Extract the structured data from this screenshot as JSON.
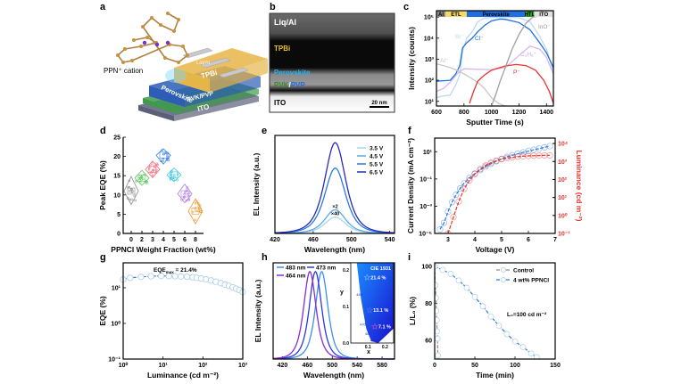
{
  "panel_labels": [
    "a",
    "b",
    "c",
    "d",
    "e",
    "f",
    "g",
    "h",
    "i"
  ],
  "panel_a": {
    "cation_label": "PPN⁺ cation",
    "layers": [
      "ITO",
      "PVK/PVP",
      "Perovskite",
      "TPBi",
      "Liq/Al"
    ],
    "colors": {
      "ITO": "#5b5f78",
      "PVK/PVP": "#3f9a4c",
      "Perovskite": "#2d5db6",
      "TPBi": "#e6b548",
      "Liq/Al": "#c9c9c9"
    }
  },
  "panel_b": {
    "layers": [
      {
        "label": "Liq/Al",
        "color": "#ffffff"
      },
      {
        "label": "TPBi",
        "color": "#f0c020"
      },
      {
        "label": "Perovskite",
        "color": "#28b4f0"
      },
      {
        "label": "ITO",
        "color": "#000000"
      }
    ],
    "pvk_label": "PVK",
    "pvp_label": "PVP",
    "slash": "/",
    "pvk_color": "#3a8a2a",
    "pvp_color": "#1e6ee0",
    "scale_bar": "20 nm"
  },
  "chart_data": [
    {
      "id": "c",
      "type": "line",
      "xlabel": "Sputter Time (s)",
      "ylabel": "Intensity (counts)",
      "xlim": [
        600,
        1450
      ],
      "ylim": [
        6,
        200000
      ],
      "yscale": "log",
      "xticks": [
        600,
        800,
        1000,
        1200,
        1400
      ],
      "xtick_labels": [
        "600",
        "800",
        "1000",
        "1200",
        "1400"
      ],
      "yticks": [
        10,
        100,
        1000,
        10000,
        100000
      ],
      "ytick_labels": [
        "10¹",
        "10²",
        "10³",
        "10⁴",
        "10⁵"
      ],
      "regions": [
        {
          "label": "Al",
          "from": 600,
          "to": 665,
          "color": "#8c8c8c"
        },
        {
          "label": "ETL",
          "from": 665,
          "to": 820,
          "color": "#f5d96a"
        },
        {
          "label": "Perovskite",
          "from": 820,
          "to": 1245,
          "color": "#1f6fe0"
        },
        {
          "label": "HTL",
          "from": 1245,
          "to": 1310,
          "color": "#2aa02a"
        },
        {
          "label": "ITO",
          "from": 1310,
          "to": 1450,
          "color": "#e0e0e0"
        }
      ],
      "series": [
        {
          "name": "Br⁻",
          "color": "#bcd9f2",
          "x": [
            600,
            650,
            700,
            740,
            770,
            790,
            820,
            860,
            900,
            950,
            1000,
            1100,
            1200,
            1280,
            1350,
            1400,
            1450
          ],
          "y": [
            15,
            18,
            20,
            60,
            200,
            2500,
            10000,
            20000,
            60000,
            90000,
            95000,
            95000,
            93000,
            60000,
            12000,
            3000,
            250
          ]
        },
        {
          "name": "Cl⁻",
          "color": "#1f6fe0",
          "x": [
            600,
            650,
            700,
            740,
            770,
            790,
            820,
            860,
            900,
            950,
            1000,
            1060,
            1100,
            1200,
            1280,
            1350,
            1400,
            1450
          ],
          "y": [
            90,
            95,
            100,
            200,
            500,
            3500,
            6000,
            10000,
            20000,
            40000,
            65000,
            80000,
            78000,
            55000,
            25000,
            6000,
            2000,
            400
          ]
        },
        {
          "name": "Al⁻",
          "color": "#c8c8c8",
          "x": [
            600,
            650,
            700,
            750,
            800,
            850,
            900,
            950,
            1000,
            1050,
            1100
          ],
          "y": [
            600,
            500,
            400,
            300,
            200,
            130,
            80,
            40,
            15,
            8,
            6
          ]
        },
        {
          "name": "C₃H₆⁺",
          "color": "#d5b8ee",
          "x": [
            600,
            650,
            700,
            750,
            800,
            900,
            1000,
            1100,
            1200,
            1280,
            1350,
            1400,
            1450
          ],
          "y": [
            30,
            40,
            80,
            200,
            350,
            330,
            320,
            400,
            1500,
            4200,
            3000,
            1200,
            200
          ]
        },
        {
          "name": "P⁻",
          "color": "#e8332c",
          "x": [
            840,
            870,
            900,
            950,
            1000,
            1100,
            1180,
            1250,
            1320,
            1380,
            1420,
            1450
          ],
          "y": [
            8,
            30,
            90,
            180,
            300,
            480,
            560,
            500,
            300,
            100,
            30,
            8
          ]
        },
        {
          "name": "InO⁻",
          "color": "#a0a0a0",
          "x": [
            1000,
            1030,
            1060,
            1100,
            1150,
            1200,
            1250,
            1300,
            1350,
            1450
          ],
          "y": [
            6,
            20,
            80,
            400,
            3000,
            15000,
            50000,
            100000,
            110000,
            110000
          ]
        }
      ],
      "labels": [
        "Br⁻",
        "Cl⁻",
        "Al⁻",
        "C₃H₆⁺",
        "P⁻",
        "InO⁻"
      ]
    },
    {
      "id": "d",
      "type": "violin",
      "xlabel": "PPNCl Weight Fraction (wt%)",
      "ylabel": "Peak EQE (%)",
      "ylim": [
        0,
        25
      ],
      "yticks": [
        0,
        5,
        10,
        15,
        20,
        25
      ],
      "ytick_labels": [
        "0",
        "5",
        "10",
        "15",
        "20",
        "25"
      ],
      "categories": [
        "0",
        "2",
        "3",
        "4",
        "5",
        "6",
        "8"
      ],
      "means": [
        11.0,
        14.4,
        16.6,
        20.3,
        15.2,
        10.3,
        5.8
      ],
      "ranges": [
        [
          7.5,
          14.8
        ],
        [
          12.5,
          16.4
        ],
        [
          14.5,
          18.8
        ],
        [
          18.0,
          22.0
        ],
        [
          13.5,
          17.0
        ],
        [
          8.0,
          12.8
        ],
        [
          2.5,
          9.0
        ]
      ],
      "colors": [
        "#8c8c8c",
        "#5fc85f",
        "#f06a7a",
        "#3a86e8",
        "#3ec8e0",
        "#b07ae0",
        "#f0962a"
      ]
    },
    {
      "id": "e",
      "type": "line",
      "xlabel": "Wavelength (nm)",
      "ylabel": "EL Intensity (a.u.)",
      "xlim": [
        420,
        545
      ],
      "ylim": [
        0,
        1.08
      ],
      "xticks": [
        420,
        460,
        500,
        540
      ],
      "xtick_labels": [
        "420",
        "460",
        "500",
        "540"
      ],
      "peak_nm": 483,
      "fwhm_nm": 24,
      "series": [
        {
          "name": "3.5 V",
          "color": "#a8d8f0",
          "relative_intensity": 0.18,
          "multiplier": "×40"
        },
        {
          "name": "4.5 V",
          "color": "#5aa8e8",
          "relative_intensity": 0.26,
          "multiplier": "×2"
        },
        {
          "name": "5.5 V",
          "color": "#2a78e0",
          "relative_intensity": 0.72
        },
        {
          "name": "6.5 V",
          "color": "#2a2ab8",
          "relative_intensity": 1.0
        }
      ]
    },
    {
      "id": "f",
      "type": "line",
      "xlabel": "Voltage (V)",
      "ylabel": "Current Density (mA cm⁻²)",
      "y2label": "Luminance (cd m⁻²)",
      "xlim": [
        2.5,
        7
      ],
      "xticks": [
        3,
        4,
        5,
        6,
        7
      ],
      "xtick_labels": [
        "3",
        "4",
        "5",
        "6",
        "7"
      ],
      "ylim": [
        1e-05,
        100
      ],
      "yscale": "log",
      "yticks": [
        1e-05,
        0.001,
        0.1,
        10
      ],
      "ytick_labels": [
        "10⁻⁵",
        "10⁻³",
        "10⁻¹",
        "10¹"
      ],
      "y2lim": [
        0.1,
        20000
      ],
      "y2ticks": [
        0.1,
        1,
        10,
        100,
        1000,
        10000
      ],
      "y2tick_labels": [
        "10⁻¹",
        "10⁰",
        "10¹",
        "10²",
        "10³",
        "10⁴"
      ],
      "y2color": "#e8332c",
      "series": [
        {
          "name": "Current Density",
          "axis": "left",
          "color": "#2a78e0",
          "x": [
            2.7,
            2.85,
            3.0,
            3.15,
            3.3,
            3.45,
            3.6,
            3.8,
            4.0,
            4.2,
            4.4,
            4.6,
            4.8,
            5.0,
            5.2,
            5.4,
            5.6,
            5.8,
            6.0,
            6.2,
            6.4,
            6.6,
            6.8
          ],
          "y": [
            2e-05,
            6e-05,
            0.0004,
            0.002,
            0.007,
            0.02,
            0.05,
            0.12,
            0.25,
            0.45,
            0.8,
            1.3,
            2.0,
            3.0,
            4.2,
            5.5,
            7.0,
            9.0,
            11,
            14,
            17,
            21,
            26
          ]
        },
        {
          "name": "Luminance",
          "axis": "right",
          "color": "#e8332c",
          "x": [
            3.0,
            3.2,
            3.4,
            3.6,
            3.8,
            4.0,
            4.2,
            4.4,
            4.6,
            4.8,
            5.0,
            5.2,
            5.4,
            5.6,
            5.8,
            6.0,
            6.2,
            6.4,
            6.6,
            6.8
          ],
          "y": [
            0.1,
            0.8,
            6,
            30,
            90,
            200,
            380,
            600,
            850,
            1100,
            1350,
            1550,
            1700,
            1850,
            1950,
            2050,
            2100,
            2150,
            2200,
            2200
          ]
        }
      ]
    },
    {
      "id": "g",
      "type": "line",
      "xlabel": "Luminance (cd m⁻²)",
      "ylabel": "EQE (%)",
      "xscale": "log",
      "xlim": [
        1,
        1000
      ],
      "xticks": [
        1,
        10,
        100,
        1000
      ],
      "xtick_labels": [
        "10⁰",
        "10¹",
        "10²",
        "10³"
      ],
      "yscale": "log",
      "ylim": [
        0.1,
        50
      ],
      "yticks": [
        0.1,
        1,
        10
      ],
      "ytick_labels": [
        "10⁻¹",
        "10⁰",
        "10¹"
      ],
      "annotation": "EQEmax = 21.4%",
      "annotation_main": "EQE",
      "annotation_sub": "max",
      "annotation_value": " = 21.4%",
      "series": [
        {
          "color": "#2a78e0",
          "x": [
            1,
            1.5,
            2.8,
            5,
            9,
            14,
            20,
            28,
            40,
            55,
            70,
            90,
            120,
            160,
            210,
            280,
            360,
            450,
            560,
            680,
            820,
            1000
          ],
          "y": [
            17,
            19,
            20.2,
            21,
            21.4,
            21.3,
            21.1,
            20.8,
            20.3,
            19.7,
            19,
            18.2,
            17.2,
            16,
            14.8,
            13.5,
            12.3,
            11.3,
            10.3,
            9.4,
            8.6,
            7.6
          ]
        }
      ]
    },
    {
      "id": "h",
      "type": "line",
      "xlabel": "Wavelength (nm)",
      "ylabel": "EL Intensity (a.u.)",
      "xlim": [
        405,
        600
      ],
      "ylim": [
        0,
        1.1
      ],
      "xticks": [
        420,
        460,
        500,
        540,
        580
      ],
      "xtick_labels": [
        "420",
        "460",
        "500",
        "540",
        "580"
      ],
      "fwhm_nm": 22,
      "series": [
        {
          "name": "483 nm",
          "color": "#3a90f0",
          "peak_nm": 483
        },
        {
          "name": "473 nm",
          "color": "#2a3ad8",
          "peak_nm": 473
        },
        {
          "name": "464 nm",
          "color": "#8a2ad8",
          "peak_nm": 464
        }
      ],
      "inset": {
        "title": "CIE 1931",
        "xlabel": "x",
        "ylabel": "y",
        "xlim": [
          0,
          0.25
        ],
        "ylim": [
          0,
          0.22
        ],
        "xticks": [
          0.1,
          0.2
        ],
        "xtick_labels": [
          "0.1",
          "0.2"
        ],
        "yticks": [
          0,
          0.1,
          0.2
        ],
        "ytick_labels": [
          "0.0",
          "0.1",
          "0.2"
        ],
        "locus_labels": [
          {
            "label": "480",
            "x": 0.05,
            "y": 0.13
          },
          {
            "label": "470",
            "x": 0.07,
            "y": 0.048
          },
          {
            "label": "460",
            "x": 0.1,
            "y": 0.022
          },
          {
            "label": "440",
            "x": 0.13,
            "y": 0.004
          }
        ],
        "points": [
          {
            "label": "21.4 %",
            "x": 0.095,
            "y": 0.18,
            "color": "#6ab0ff"
          },
          {
            "label": "13.1 %",
            "x": 0.11,
            "y": 0.09,
            "color": "#4a6ae8"
          },
          {
            "label": "7.1 %",
            "x": 0.14,
            "y": 0.045,
            "color": "#c040d0"
          }
        ]
      }
    },
    {
      "id": "i",
      "type": "line",
      "xlabel": "Time (min)",
      "ylabel": "L/L₀ (%)",
      "xlim": [
        0,
        150
      ],
      "ylim": [
        50,
        102
      ],
      "xticks": [
        0,
        50,
        100,
        150
      ],
      "xtick_labels": [
        "0",
        "50",
        "100",
        "150"
      ],
      "yticks": [
        60,
        80,
        100
      ],
      "ytick_labels": [
        "60",
        "80",
        "100"
      ],
      "annotation": "L₀=100 cd m⁻²",
      "series": [
        {
          "name": "Control",
          "color": "#8c8c8c",
          "x": [
            0,
            0.8,
            1.5,
            2,
            2.5,
            3,
            3.5,
            4
          ],
          "y": [
            100,
            90,
            83,
            76,
            71,
            65,
            61,
            52
          ]
        },
        {
          "name": "4 wt% PPNCl",
          "color": "#2a78e0",
          "x": [
            0,
            10,
            20,
            30,
            40,
            50,
            60,
            70,
            80,
            90,
            100,
            110,
            120,
            127
          ],
          "y": [
            100,
            98.2,
            96,
            92.5,
            88.5,
            83.5,
            78.5,
            73,
            68,
            63.5,
            59.5,
            56.5,
            53,
            51
          ]
        }
      ]
    }
  ]
}
